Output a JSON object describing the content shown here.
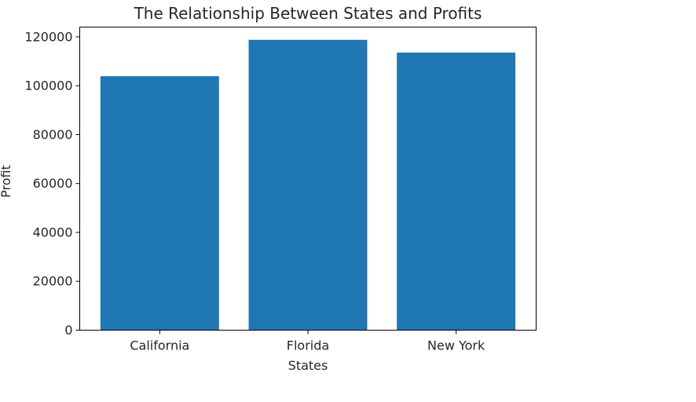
{
  "chart_data": {
    "type": "bar",
    "title": "The Relationship Between States and Profits",
    "xlabel": "States",
    "ylabel": "Profit",
    "categories": [
      "California",
      "Florida",
      "New York"
    ],
    "values": [
      103906,
      118784,
      113557
    ],
    "ylim": [
      0,
      124000
    ],
    "yticks": [
      0,
      20000,
      40000,
      60000,
      80000,
      100000,
      120000
    ],
    "grid": false,
    "bar_color": "#1f77b4"
  }
}
